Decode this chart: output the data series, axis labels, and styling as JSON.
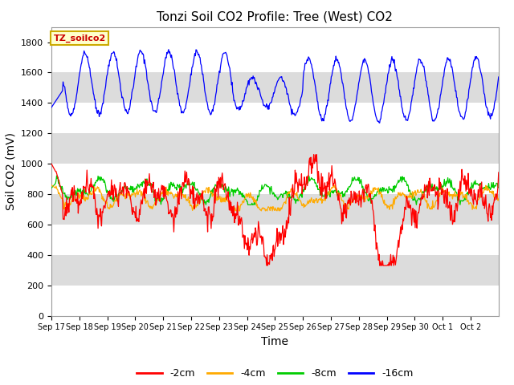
{
  "title": "Tonzi Soil CO2 Profile: Tree (West) CO2",
  "ylabel": "Soil CO2 (mV)",
  "xlabel": "Time",
  "legend_label": "TZ_soilco2",
  "legend_entries": [
    "-2cm",
    "-4cm",
    "-8cm",
    "-16cm"
  ],
  "legend_colors": [
    "#ff0000",
    "#ffaa00",
    "#00cc00",
    "#0000ff"
  ],
  "ylim": [
    0,
    1900
  ],
  "yticks": [
    0,
    200,
    400,
    600,
    800,
    1000,
    1200,
    1400,
    1600,
    1800
  ],
  "xticklabels": [
    "Sep 17",
    "Sep 18",
    "Sep 19",
    "Sep 20",
    "Sep 21",
    "Sep 22",
    "Sep 23",
    "Sep 24",
    "Sep 25",
    "Sep 26",
    "Sep 27",
    "Sep 28",
    "Sep 29",
    "Sep 30",
    "Oct 1",
    "Oct 2"
  ],
  "bg_light": "#ffffff",
  "bg_dark": "#dcdcdc",
  "title_fontsize": 11,
  "axis_label_fontsize": 10,
  "tick_fontsize": 8
}
